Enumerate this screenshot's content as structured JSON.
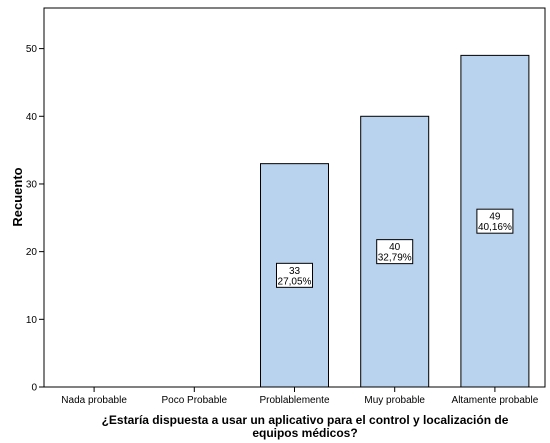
{
  "chart_data": {
    "type": "bar",
    "categories": [
      "Nada probable",
      "Poco Probable",
      "Problablemente",
      "Muy probable",
      "Altamente probable"
    ],
    "values": [
      0,
      0,
      33,
      40,
      49
    ],
    "data_labels": [
      null,
      null,
      {
        "count": "33",
        "percent": "27,05%"
      },
      {
        "count": "40",
        "percent": "32,79%"
      },
      {
        "count": "49",
        "percent": "40,16%"
      }
    ],
    "ylabel": "Recuento",
    "xlabel_lines": [
      "¿Estaría dispuesta a usar un aplicativo para el control y localización de",
      "equipos médicos?"
    ],
    "ylim": [
      0,
      56
    ],
    "yticks": [
      0,
      10,
      20,
      30,
      40,
      50
    ],
    "grid": false,
    "colors": {
      "bar_fill": "#B9D3EE",
      "bar_stroke": "#000000",
      "axis": "#000000",
      "background": "#ffffff"
    }
  }
}
